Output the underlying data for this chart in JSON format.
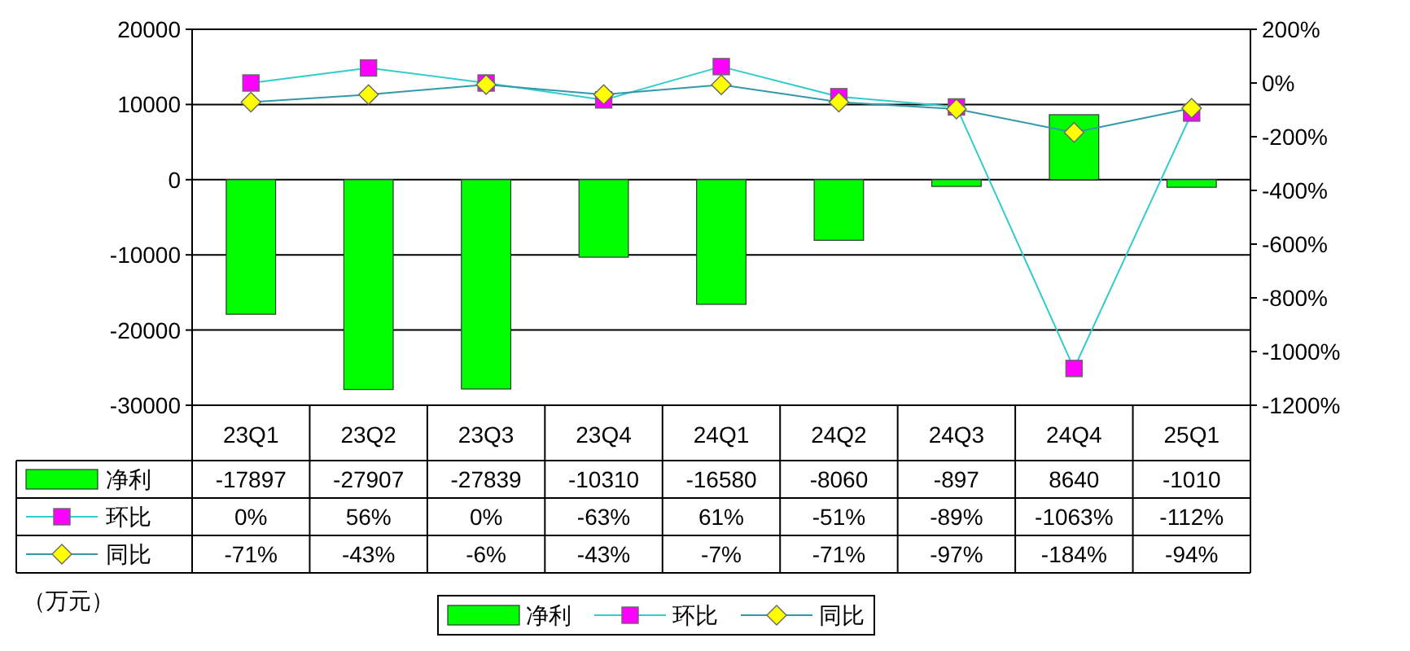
{
  "chart_data": {
    "type": "bar",
    "categories": [
      "23Q1",
      "23Q2",
      "23Q3",
      "23Q4",
      "24Q1",
      "24Q2",
      "24Q3",
      "24Q4",
      "25Q1"
    ],
    "series": [
      {
        "name": "净利",
        "color": "#00ff00",
        "values": [
          -17897,
          -27907,
          -27839,
          -10310,
          -16580,
          -8060,
          -897,
          8640,
          -1010
        ],
        "value_labels": [
          "-17897",
          "-27907",
          "-27839",
          "-10310",
          "-16580",
          "-8060",
          "-897",
          "8640",
          "-1010"
        ]
      },
      {
        "name": "环比",
        "type": "line",
        "axis": "y2",
        "marker": "square",
        "color": "#33cccc",
        "colors": [
          "#ff00ff",
          "#ff00ff",
          "#ff00ff",
          "#ff00ff",
          "#ff00ff",
          "#ff00ff",
          "#ff00ff",
          "#ff00ff",
          "#ff00ff"
        ],
        "values": [
          0,
          56,
          0,
          -63,
          61,
          -51,
          -89,
          -1063,
          -112
        ],
        "value_labels": [
          "0%",
          "56%",
          "0%",
          "-63%",
          "61%",
          "-51%",
          "-89%",
          "-1063%",
          "-112%"
        ]
      },
      {
        "name": "同比",
        "type": "line",
        "axis": "y2",
        "marker": "diamond",
        "color": "#3399aa",
        "colors": [
          "#ffff00",
          "#ffff00",
          "#ffff00",
          "#ffff00",
          "#ffff00",
          "#ffff00",
          "#ffff00",
          "#ffff00",
          "#ffff00"
        ],
        "values": [
          -71,
          -43,
          -6,
          -43,
          -7,
          -71,
          -97,
          -184,
          -94
        ],
        "value_labels": [
          "-71%",
          "-43%",
          "-6%",
          "-43%",
          "-7%",
          "-71%",
          "-97%",
          "-184%",
          "-94%"
        ]
      }
    ],
    "annotations": [
      "（万元）"
    ],
    "ylim": [
      -30000,
      20000
    ],
    "yticks": [
      -30000,
      -20000,
      -10000,
      0,
      10000,
      20000
    ],
    "y2lim": [
      -1200,
      200
    ],
    "y2ticks": [
      {
        "value": -1200,
        "label": "-1200%"
      },
      {
        "value": -1000,
        "label": "-1000%"
      },
      {
        "value": -800,
        "label": "-800%"
      },
      {
        "value": -600,
        "label": "-600%"
      },
      {
        "value": -400,
        "label": "-400%"
      },
      {
        "value": -200,
        "label": "-200%"
      },
      {
        "value": 0,
        "label": "0%"
      },
      {
        "value": 200,
        "label": "200%"
      }
    ],
    "grid": "y",
    "legend": "bottom"
  }
}
